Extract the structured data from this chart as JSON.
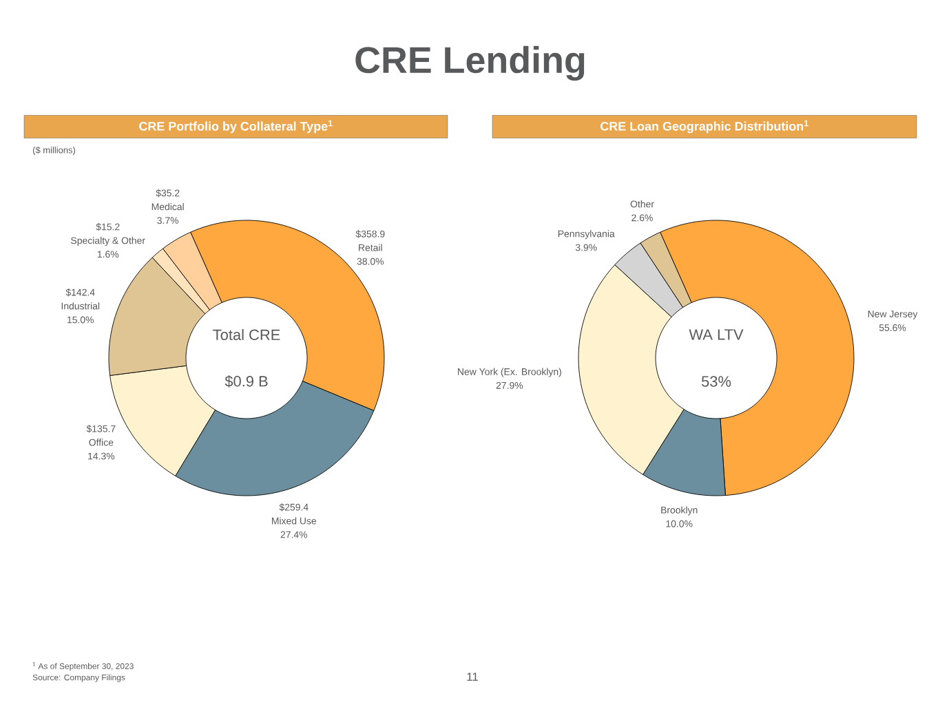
{
  "chart_data": [
    {
      "type": "donut",
      "title": "CRE Portfolio by Collateral Type$^{1}$",
      "subtitle": "($ millions)",
      "categories": [
        "Retail",
        "Mixed Use",
        "Office",
        "Industrial",
        "Specialty & Other",
        "Medical"
      ],
      "values": [
        358.9,
        259.4,
        135.7,
        142.4,
        15.2,
        35.2
      ],
      "value_labels": [
        "$358.9",
        "$259.4",
        "$135.7",
        "$142.4",
        "$15.2",
        "$35.2"
      ],
      "colors": [
        "#ffa83f",
        "#6b8f9e",
        "#fff2cf",
        "#dfc594",
        "#ffe3bd",
        "#ffd09b"
      ],
      "annotations": [
        "38.0%",
        "27.4%",
        "14.3%",
        "15.0%",
        "1.6%",
        "3.7%",
        "Total CRE",
        "$0.9 B",
        "CRE Lending",
        "$^{1}$ As of September 30, 2023",
        "Source: Company Filings",
        "11"
      ]
    },
    {
      "type": "donut",
      "title": "CRE Loan Geographic Distribution$^{1}$",
      "categories": [
        "New Jersey",
        "Brooklyn",
        "New York (Ex. Brooklyn)",
        "Pennsylvania",
        "Other"
      ],
      "values": [
        55.6,
        10.0,
        27.9,
        3.9,
        2.6
      ],
      "value_labels": [
        "55.6%",
        "10.0%",
        "27.9%",
        "3.9%",
        "2.6%"
      ],
      "colors": [
        "#ffa83f",
        "#6b8f9e",
        "#fff2cf",
        "#d4d4d4",
        "#dfc594"
      ],
      "annotations": [
        "WA LTV",
        "53%"
      ]
    }
  ]
}
